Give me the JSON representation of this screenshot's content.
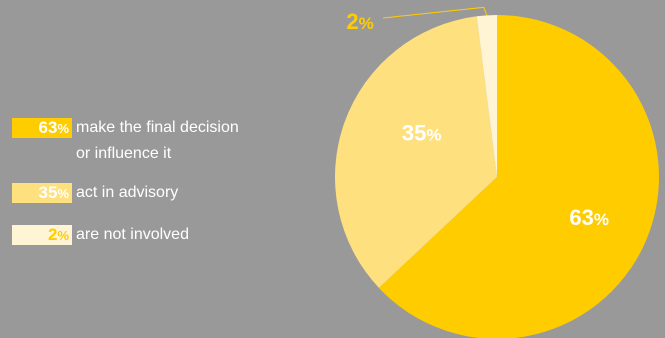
{
  "colors": {
    "background": "#999999",
    "slice_primary": "#ffcc00",
    "slice_secondary": "#ffe07f",
    "slice_tertiary": "#fff5d4",
    "badge_text_light": "#ffffff",
    "badge_text_dark": "#ffcc00",
    "outside_label": "#ffcc00",
    "leader_line": "#ffcc00"
  },
  "legend": [
    {
      "badge": "63",
      "pct_sign": "%",
      "lines": [
        "make the final decision",
        "or influence it"
      ]
    },
    {
      "badge": "35",
      "pct_sign": "%",
      "lines": [
        "act in advisory"
      ]
    },
    {
      "badge": "2",
      "pct_sign": "%",
      "lines": [
        "are not involved"
      ]
    }
  ],
  "chart_data": {
    "type": "pie",
    "title": "",
    "categories": [
      "make the final decision or influence it",
      "act in advisory",
      "are not involved"
    ],
    "values": [
      63,
      35,
      2
    ],
    "slice_labels": [
      "63%",
      "35%",
      "2%"
    ],
    "start_angle_deg": 0,
    "direction": "clockwise",
    "legend_position": "left"
  }
}
